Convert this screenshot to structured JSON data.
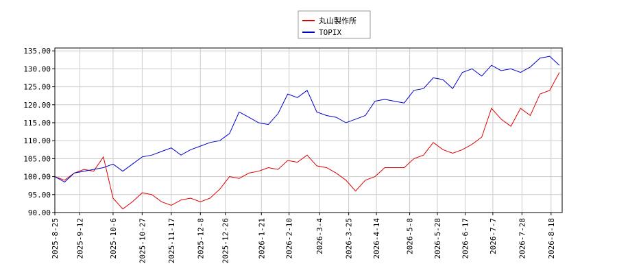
{
  "chart_data": {
    "type": "line",
    "x": [
      "2025-08-25",
      "2025-09-01",
      "2025-09-08",
      "2025-09-15",
      "2025-09-22",
      "2025-09-29",
      "2025-10-06",
      "2025-10-13",
      "2025-10-20",
      "2025-10-27",
      "2025-11-03",
      "2025-11-10",
      "2025-11-17",
      "2025-11-24",
      "2025-12-01",
      "2025-12-08",
      "2025-12-15",
      "2025-12-22",
      "2025-12-29",
      "2026-01-05",
      "2026-01-12",
      "2026-01-19",
      "2026-01-26",
      "2026-02-02",
      "2026-02-09",
      "2026-02-16",
      "2026-02-23",
      "2026-03-02",
      "2026-03-09",
      "2026-03-16",
      "2026-03-23",
      "2026-03-30",
      "2026-04-06",
      "2026-04-13",
      "2026-04-20",
      "2026-04-27",
      "2026-05-04",
      "2026-05-11",
      "2026-05-18",
      "2026-05-25",
      "2026-06-01",
      "2026-06-08",
      "2026-06-15",
      "2026-06-22",
      "2026-06-29",
      "2026-07-06",
      "2026-07-13",
      "2026-07-20",
      "2026-07-27",
      "2026-08-03",
      "2026-08-10",
      "2026-08-17",
      "2026-08-24"
    ],
    "series": [
      {
        "name": "丸山製作所",
        "color": "#dd0000",
        "values": [
          100,
          99,
          101,
          102,
          101.5,
          105.5,
          94,
          91,
          93,
          95.5,
          95,
          93,
          92,
          93.5,
          94,
          93,
          94,
          96.5,
          100,
          99.5,
          101,
          101.5,
          102.5,
          102,
          104.5,
          104,
          106,
          103,
          102.5,
          101,
          99,
          96,
          99,
          100,
          102.5,
          102.5,
          102.5,
          105,
          106,
          109.5,
          107.5,
          106.5,
          107.5,
          109,
          111,
          119,
          116,
          114,
          119,
          117,
          123,
          124,
          129
        ]
      },
      {
        "name": "TOPIX",
        "color": "#0000cc",
        "values": [
          100,
          98.5,
          101,
          101.5,
          102,
          102.5,
          103.5,
          101.5,
          103.5,
          105.5,
          106,
          107,
          108,
          106,
          107.5,
          108.5,
          109.5,
          110,
          112,
          118,
          116.5,
          115,
          114.5,
          117.5,
          123,
          122,
          124,
          118,
          117,
          116.5,
          115,
          116,
          117,
          121,
          121.5,
          121,
          120.5,
          124,
          124.5,
          127.5,
          127,
          124.5,
          129,
          130,
          128,
          131,
          129.5,
          130,
          129,
          130.5,
          133,
          133.5,
          131
        ]
      }
    ],
    "xlim": [
      "2025-08-25",
      "2026-08-26"
    ],
    "xticks": [
      "2025-8-25",
      "2025-9-12",
      "2025-10-6",
      "2025-10-27",
      "2025-11-17",
      "2025-12-8",
      "2025-12-26",
      "2026-1-21",
      "2026-2-10",
      "2026-3-4",
      "2026-3-25",
      "2026-4-14",
      "2026-5-8",
      "2026-5-28",
      "2026-6-17",
      "2026-7-7",
      "2026-7-28",
      "2026-8-18"
    ],
    "ylim": [
      90,
      135.8
    ],
    "yticks": [
      {
        "value": 90,
        "label": "90.00"
      },
      {
        "value": 95,
        "label": "95.00"
      },
      {
        "value": 100,
        "label": "100.00"
      },
      {
        "value": 105,
        "label": "105.00"
      },
      {
        "value": 110,
        "label": "110.00"
      },
      {
        "value": 115,
        "label": "115.00"
      },
      {
        "value": 120,
        "label": "120.00"
      },
      {
        "value": 125,
        "label": "125.00"
      },
      {
        "value": 130,
        "label": "130.00"
      },
      {
        "value": 135,
        "label": "135.00"
      }
    ],
    "grid": true
  }
}
